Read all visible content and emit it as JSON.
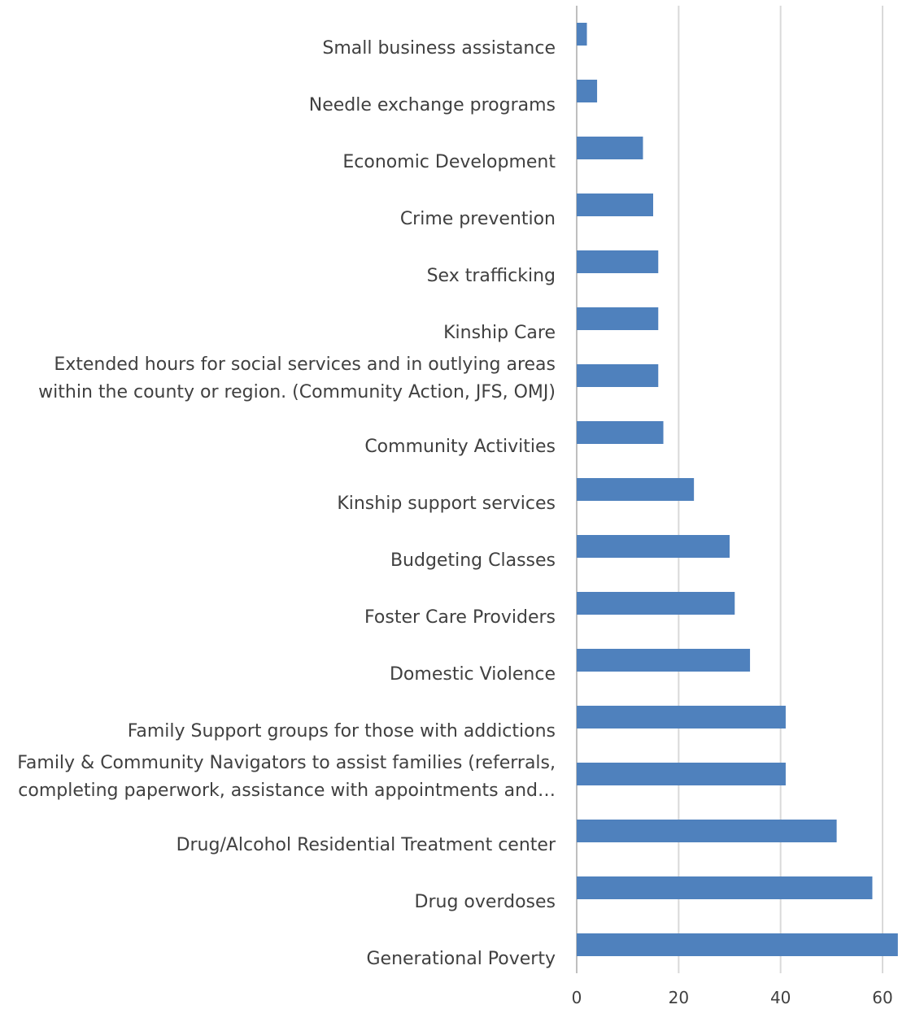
{
  "chart_data": {
    "type": "bar",
    "orientation": "horizontal",
    "categories": [
      "Small business assistance",
      "Needle exchange programs",
      "Economic Development",
      "Crime prevention",
      "Sex trafficking",
      "Kinship Care",
      "Extended hours for social services and in outlying areas within the county or region.  (Community Action, JFS, OMJ)",
      "Community Activities",
      "Kinship support services",
      "Budgeting Classes",
      "Foster Care Providers",
      "Domestic Violence",
      "Family Support groups for those with addictions",
      "Family & Community Navigators to assist families (referrals, completing paperwork, assistance with appointments and…",
      "Drug/Alcohol Residential Treatment center",
      "Drug overdoses",
      "Generational Poverty"
    ],
    "category_label_lines": [
      [
        "Small business assistance"
      ],
      [
        "Needle exchange programs"
      ],
      [
        "Economic Development"
      ],
      [
        "Crime prevention"
      ],
      [
        "Sex trafficking"
      ],
      [
        "Kinship Care"
      ],
      [
        "Extended hours for social services and in outlying areas",
        "within the county or region.  (Community Action, JFS, OMJ)"
      ],
      [
        "Community Activities"
      ],
      [
        "Kinship support services"
      ],
      [
        "Budgeting Classes"
      ],
      [
        "Foster Care Providers"
      ],
      [
        "Domestic Violence"
      ],
      [
        "Family Support groups for those with addictions"
      ],
      [
        "Family & Community Navigators to assist families (referrals,",
        "completing paperwork, assistance with appointments and…"
      ],
      [
        "Drug/Alcohol Residential Treatment center"
      ],
      [
        "Drug overdoses"
      ],
      [
        "Generational Poverty"
      ]
    ],
    "values": [
      2,
      4,
      13,
      15,
      16,
      16,
      16,
      17,
      23,
      30,
      31,
      34,
      41,
      41,
      51,
      58,
      63
    ],
    "xlim": [
      0,
      60
    ],
    "xticks": [
      "0",
      "20",
      "40",
      "60"
    ],
    "grid": true,
    "legend": "none",
    "title": "",
    "xlabel": "",
    "ylabel": "",
    "bar_color": "#4f81bd",
    "grid_color": "#d9d9d9",
    "text_color": "#404040"
  }
}
